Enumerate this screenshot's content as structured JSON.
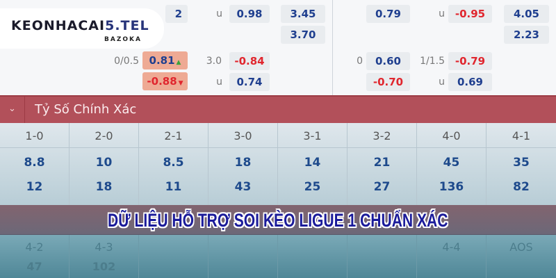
{
  "logo": {
    "text_main": "KEONHACAI",
    "text_accent": "5.TEL",
    "sub": "BAZOKA"
  },
  "odds_left": {
    "r1": {
      "partial": "2",
      "label": "u",
      "ou": "0.98",
      "x12": "3.45"
    },
    "r2": {
      "x12": "3.70"
    },
    "r3": {
      "hcp": "0/0.5",
      "hcp_val": "0.81",
      "ou_line": "3.0",
      "ou": "-0.84"
    },
    "r4": {
      "hcp_val": "-0.88",
      "label": "u",
      "ou": "0.74"
    }
  },
  "odds_right": {
    "r1": {
      "hcp_val": "0.79",
      "label": "u",
      "ou": "-0.95",
      "x12": "4.05"
    },
    "r2": {
      "x12": "2.23"
    },
    "r3": {
      "hcp": "0",
      "hcp_val": "0.60",
      "ou_line": "1/1.5",
      "ou": "-0.79"
    },
    "r4": {
      "hcp_val": "-0.70",
      "label": "u",
      "ou": "0.69"
    }
  },
  "section": {
    "title": "Tỷ Số Chính Xác"
  },
  "scores": [
    {
      "score": "1-0",
      "home": "8.8",
      "away": "12"
    },
    {
      "score": "2-0",
      "home": "10",
      "away": "18"
    },
    {
      "score": "2-1",
      "home": "8.5",
      "away": "11"
    },
    {
      "score": "3-0",
      "home": "18",
      "away": "43"
    },
    {
      "score": "3-1",
      "home": "14",
      "away": "25"
    },
    {
      "score": "3-2",
      "home": "21",
      "away": "27"
    },
    {
      "score": "4-0",
      "home": "45",
      "away": "136"
    },
    {
      "score": "4-1",
      "home": "35",
      "away": "82"
    }
  ],
  "faded": {
    "c1": "4-2",
    "c1v": "47",
    "c2": "4-3",
    "c2v": "102",
    "c7": "4-4",
    "c8": "AOS"
  },
  "banner": "DỮ LIỆU HỖ TRỢ SOI KÈO LIGUE 1 CHUẨN XÁC",
  "colors": {
    "header": "#b2505a",
    "odds_blue": "#1f3f8f",
    "odds_red": "#e0262e",
    "highlight": "#eeaa94",
    "banner_text": "#1b1b9a"
  }
}
